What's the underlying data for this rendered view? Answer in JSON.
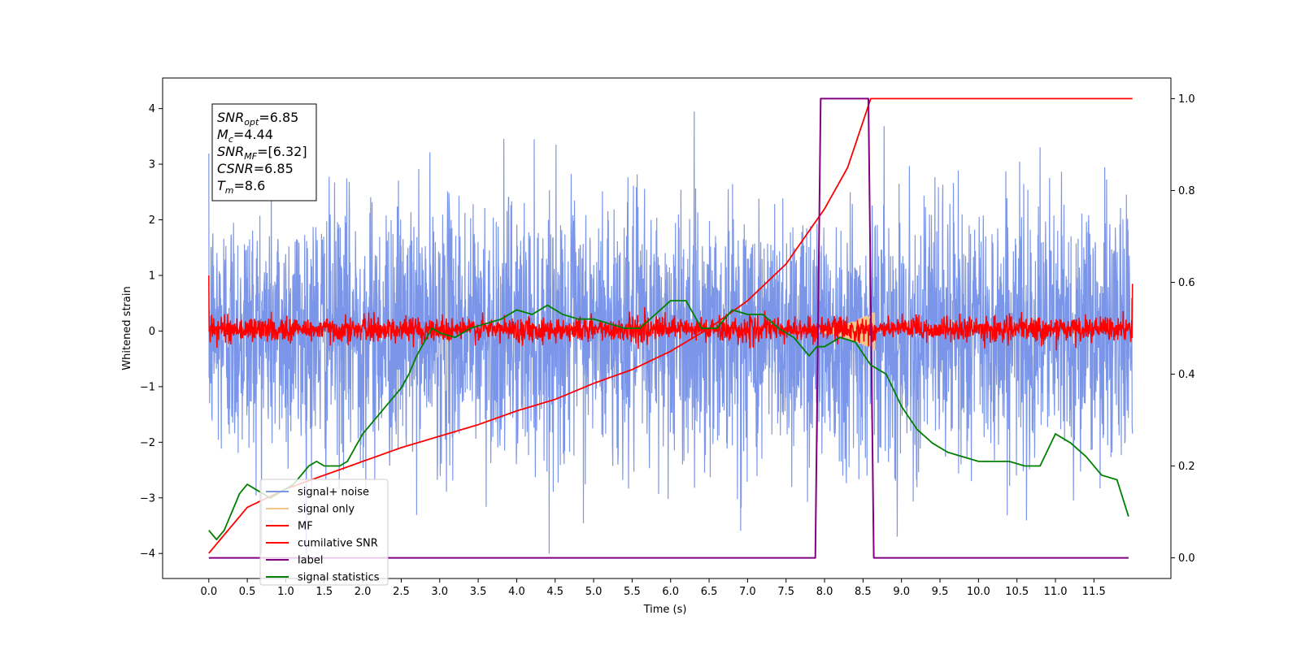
{
  "chart_data": {
    "type": "line",
    "xlabel": "Time (s)",
    "ylabel": "Whitened strain",
    "xlim": [
      -0.6,
      12.5
    ],
    "ylim": [
      -4.45,
      4.55
    ],
    "y2lim": [
      -0.045,
      1.045
    ],
    "x_ticks": [
      "0.0",
      "0.5",
      "1.0",
      "1.5",
      "2.0",
      "2.5",
      "3.0",
      "3.5",
      "4.0",
      "4.5",
      "5.0",
      "5.5",
      "6.0",
      "6.5",
      "7.0",
      "7.5",
      "8.0",
      "8.5",
      "9.0",
      "9.5",
      "10.0",
      "10.5",
      "11.0",
      "11.5"
    ],
    "y_ticks": [
      "−4",
      "−3",
      "−2",
      "−1",
      "0",
      "1",
      "2",
      "3",
      "4"
    ],
    "y2_ticks": [
      "0.0",
      "0.2",
      "0.4",
      "0.6",
      "0.8",
      "1.0"
    ],
    "grid": false,
    "legend": {
      "placement": "lower-left",
      "entries": [
        {
          "name": "signal+ noise",
          "color": "#7b96e8"
        },
        {
          "name": "signal only",
          "color": "#f5c58a"
        },
        {
          "name": "MF",
          "color": "#ff0000"
        },
        {
          "name": "cumilative SNR",
          "color": "#ff0000"
        },
        {
          "name": "label",
          "color": "#800080"
        },
        {
          "name": "signal statistics",
          "color": "#008000"
        }
      ]
    },
    "annotation": {
      "lines": [
        {
          "sym": "SNR",
          "sub": "opt",
          "value": "=6.85"
        },
        {
          "sym": "M",
          "sub": "c",
          "value": "=4.44"
        },
        {
          "sym": "SNR",
          "sub": "MF",
          "value": "=[6.32]"
        },
        {
          "sym": "CSNR",
          "sub": "",
          "value": "=6.85"
        },
        {
          "sym": "T",
          "sub": "m",
          "value": "=8.6"
        }
      ]
    },
    "series": [
      {
        "name": "signal+ noise",
        "axis": "left",
        "color": "#7b96e8",
        "description_range": [
          -4.0,
          4.15
        ],
        "x_range": [
          0.0,
          12.0
        ]
      },
      {
        "name": "signal only",
        "axis": "left",
        "color": "#f5c58a",
        "x_range": [
          7.9,
          8.65
        ],
        "amplitude_peak": 0.35
      },
      {
        "name": "MF",
        "axis": "left",
        "color": "#ff0000",
        "x_range": [
          0.0,
          12.0
        ],
        "typical_range": [
          -0.25,
          0.35
        ]
      },
      {
        "name": "cumilative SNR",
        "axis": "right",
        "color": "#ff0000",
        "x": [
          0.0,
          0.5,
          1.0,
          1.5,
          2.0,
          2.5,
          3.0,
          3.5,
          4.0,
          4.5,
          5.0,
          5.5,
          6.0,
          6.5,
          7.0,
          7.5,
          8.0,
          8.3,
          8.5,
          8.6,
          12.0
        ],
        "values": [
          0.01,
          0.11,
          0.15,
          0.18,
          0.21,
          0.24,
          0.265,
          0.29,
          0.32,
          0.345,
          0.38,
          0.41,
          0.45,
          0.5,
          0.56,
          0.64,
          0.76,
          0.85,
          0.95,
          1.0,
          1.0
        ]
      },
      {
        "name": "label",
        "axis": "right",
        "color": "#800080",
        "x": [
          0.0,
          7.88,
          7.95,
          8.57,
          8.64,
          11.95
        ],
        "values": [
          0.0,
          0.0,
          1.0,
          1.0,
          0.0,
          0.0
        ]
      },
      {
        "name": "signal statistics",
        "axis": "right",
        "color": "#008000",
        "x": [
          0.0,
          0.1,
          0.2,
          0.3,
          0.4,
          0.5,
          0.6,
          0.7,
          0.8,
          0.9,
          1.0,
          1.1,
          1.2,
          1.3,
          1.4,
          1.5,
          1.6,
          1.7,
          1.8,
          1.9,
          2.0,
          2.1,
          2.2,
          2.3,
          2.4,
          2.5,
          2.6,
          2.7,
          2.8,
          2.9,
          3.0,
          3.2,
          3.4,
          3.6,
          3.8,
          4.0,
          4.2,
          4.4,
          4.6,
          4.8,
          5.0,
          5.2,
          5.4,
          5.6,
          5.8,
          6.0,
          6.2,
          6.4,
          6.6,
          6.8,
          7.0,
          7.2,
          7.4,
          7.6,
          7.8,
          7.9,
          8.0,
          8.2,
          8.4,
          8.6,
          8.8,
          9.0,
          9.2,
          9.4,
          9.6,
          9.8,
          10.0,
          10.2,
          10.4,
          10.6,
          10.8,
          11.0,
          11.2,
          11.4,
          11.6,
          11.8,
          11.95
        ],
        "values": [
          0.06,
          0.04,
          0.06,
          0.1,
          0.14,
          0.16,
          0.15,
          0.14,
          0.13,
          0.14,
          0.15,
          0.16,
          0.18,
          0.2,
          0.21,
          0.2,
          0.2,
          0.2,
          0.21,
          0.24,
          0.27,
          0.29,
          0.31,
          0.33,
          0.35,
          0.37,
          0.4,
          0.44,
          0.47,
          0.5,
          0.49,
          0.48,
          0.5,
          0.51,
          0.52,
          0.54,
          0.53,
          0.55,
          0.53,
          0.52,
          0.52,
          0.51,
          0.5,
          0.5,
          0.53,
          0.56,
          0.56,
          0.5,
          0.5,
          0.54,
          0.53,
          0.53,
          0.5,
          0.48,
          0.44,
          0.46,
          0.46,
          0.48,
          0.47,
          0.42,
          0.4,
          0.33,
          0.28,
          0.25,
          0.23,
          0.22,
          0.21,
          0.21,
          0.21,
          0.2,
          0.2,
          0.27,
          0.25,
          0.22,
          0.18,
          0.17,
          0.09
        ]
      }
    ]
  }
}
